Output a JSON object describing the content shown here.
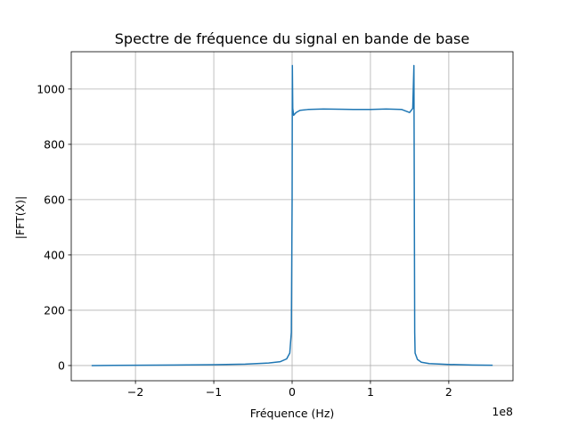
{
  "chart_data": {
    "type": "line",
    "title": "Spectre de fréquence du signal en bande de base",
    "xlabel": "Fréquence (Hz)",
    "ylabel": "|FFT(X)|",
    "x_offset_label": "1e8",
    "xlim": [
      -282000000.0,
      282000000.0
    ],
    "ylim": [
      -55,
      1135
    ],
    "grid": true,
    "x_ticks": [
      {
        "value": -200000000.0,
        "label": "−2"
      },
      {
        "value": -100000000.0,
        "label": "−1"
      },
      {
        "value": 0,
        "label": "0"
      },
      {
        "value": 100000000.0,
        "label": "1"
      },
      {
        "value": 200000000.0,
        "label": "2"
      }
    ],
    "y_ticks": [
      {
        "value": 0,
        "label": "0"
      },
      {
        "value": 200,
        "label": "200"
      },
      {
        "value": 400,
        "label": "400"
      },
      {
        "value": 600,
        "label": "600"
      },
      {
        "value": 800,
        "label": "800"
      },
      {
        "value": 1000,
        "label": "1000"
      }
    ],
    "series": [
      {
        "color": "#1f77b4",
        "x": [
          -256000000.0,
          -200000000.0,
          -150000000.0,
          -100000000.0,
          -60000000.0,
          -30000000.0,
          -15000000.0,
          -7000000.0,
          -3000000.0,
          -1000000.0,
          0,
          300000.0,
          800000.0,
          2000000.0,
          5000000.0,
          10000000.0,
          20000000.0,
          40000000.0,
          60000000.0,
          78000000.0,
          100000000.0,
          120000000.0,
          140000000.0,
          150000000.0,
          154000000.0,
          155500000.0,
          156000000.0,
          156500000.0,
          157000000.0,
          160000000.0,
          165000000.0,
          175000000.0,
          200000000.0,
          230000000.0,
          256000000.0
        ],
        "y": [
          0,
          1,
          2,
          3,
          5,
          9,
          14,
          24,
          45,
          120,
          600,
          1085,
          930,
          905,
          915,
          923,
          926,
          928,
          927,
          926,
          926,
          928,
          926,
          915,
          930,
          1085,
          600,
          120,
          45,
          22,
          12,
          7,
          4,
          2,
          1
        ]
      }
    ]
  }
}
